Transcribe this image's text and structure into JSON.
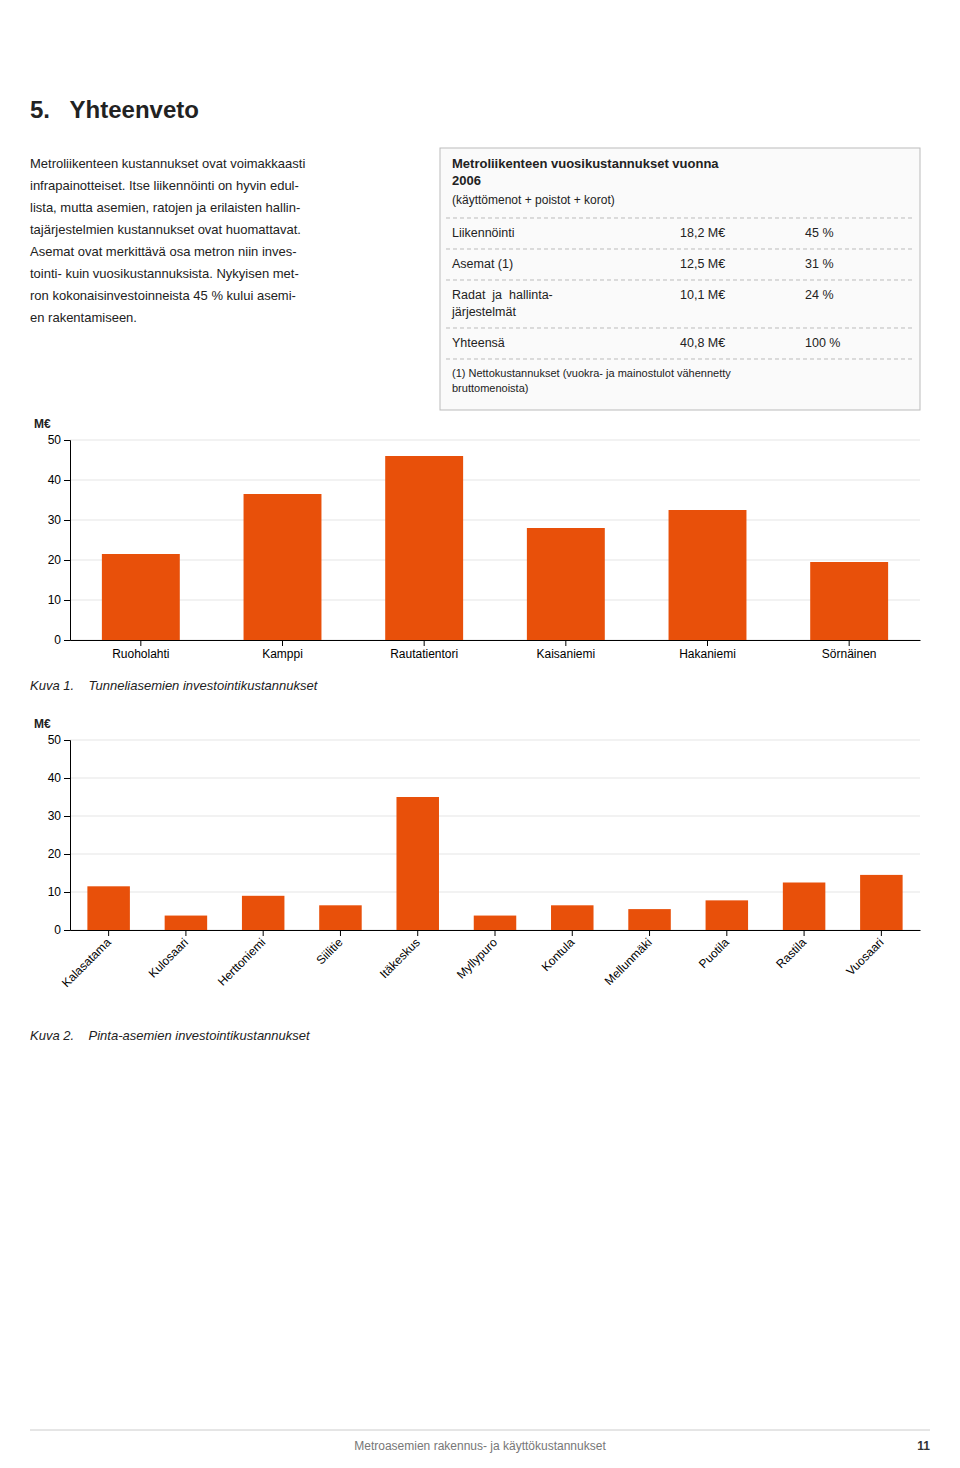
{
  "chart_data": [
    {
      "type": "bar",
      "title": "Kuva 1.    Tunneliasemien investointikustannukset",
      "ylabel": "M€",
      "categories": [
        "Ruoholahti",
        "Kamppi",
        "Rautatientori",
        "Kaisaniemi",
        "Hakaniemi",
        "Sörnäinen"
      ],
      "values": [
        21.5,
        36.5,
        46.0,
        28.0,
        32.5,
        19.5
      ],
      "color": "#e8500a",
      "ylim": [
        0,
        50
      ],
      "yticks": [
        0,
        10,
        20,
        30,
        40,
        50
      ],
      "grid": true,
      "annotations": [
        "5.   Yhteenveto",
        "Metroliikenteen kustannukset ovat voimakkaasti\ninfrapainotteiset. Itse liikennöinti on hyvin edul-\nlista, mutta asemien, ratojen ja erilaisten hallin-\ntajärjestelmien kustannukset ovat huomattavat.\nAsemat ovat merkittävä osa metron niin inves-\ntointi- kuin vuosikustannuksista. Nykyisen met-\nron kokonaisinvestoinneista 45 % kului asemi-\nen rakentamiseen.",
        "Metroliikenteen vuosikustannukset vuonna\n2006",
        "(käyttömenot + poistot + korot)",
        "Liikennöinti",
        "18,2 M€",
        "45 %",
        "Asemat (1)",
        "12,5 M€",
        "31 %",
        "Radat  ja  hallinta-\njärjestelmät",
        "10,1 M€",
        "24 %",
        "Yhteensä",
        "40,8 M€",
        "100 %",
        "(1) Nettokustannukset (vuokra- ja mainostulot vähennetty\nbruttomenoista)",
        "Metroasemien rakennus- ja käyttökustannukset",
        "11"
      ]
    },
    {
      "type": "bar",
      "title": "Kuva 2.    Pinta-asemien investointikustannukset",
      "ylabel": "M€",
      "categories": [
        "Kalasatama",
        "Kulosaari",
        "Herttoniemi",
        "Siilitie",
        "Itäkeskus",
        "Myllypuro",
        "Kontula",
        "Mellunmäki",
        "Puotila",
        "Rastila",
        "Vuosaari"
      ],
      "values": [
        11.5,
        3.8,
        9.0,
        6.5,
        35.0,
        3.8,
        6.5,
        5.5,
        7.8,
        12.5,
        14.5
      ],
      "color": "#e8500a",
      "ylim": [
        0,
        50
      ],
      "yticks": [
        0,
        10,
        20,
        30,
        40,
        50
      ],
      "grid": true
    }
  ]
}
